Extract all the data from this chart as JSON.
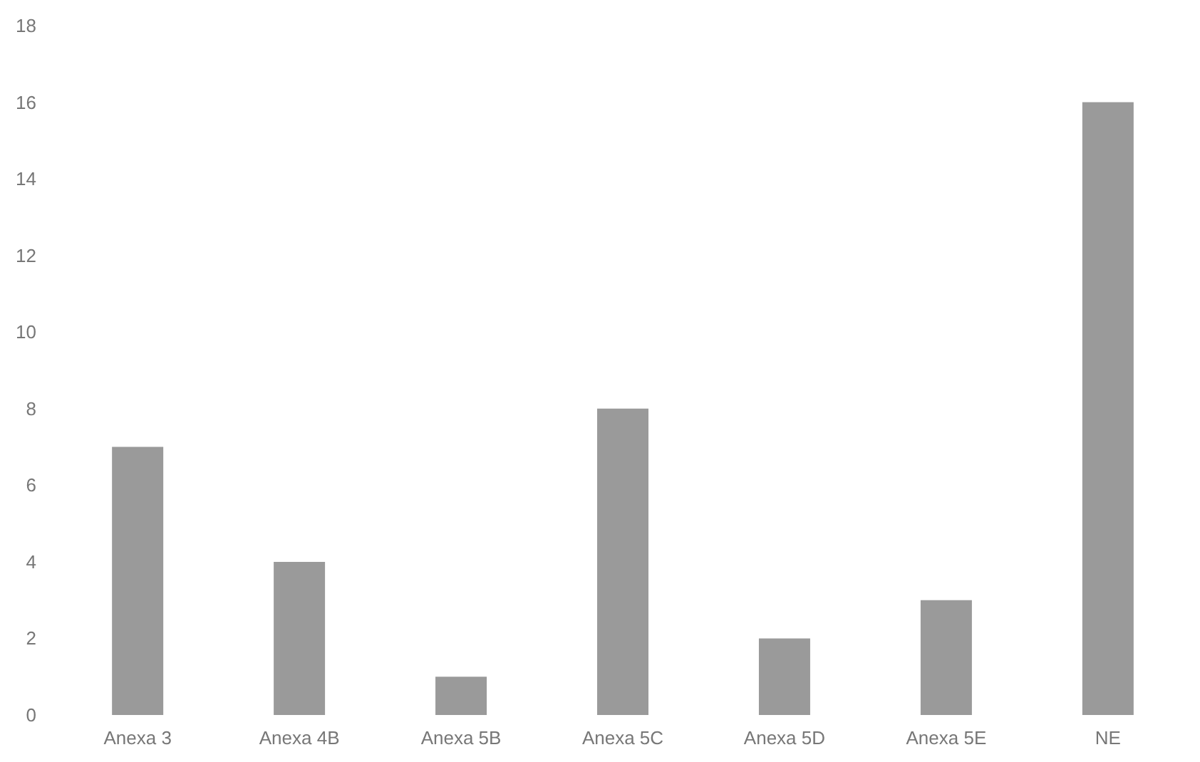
{
  "chart_data": {
    "type": "bar",
    "categories": [
      "Anexa 3",
      "Anexa 4B",
      "Anexa 5B",
      "Anexa 5C",
      "Anexa 5D",
      "Anexa 5E",
      "NE"
    ],
    "values": [
      7,
      4,
      1,
      8,
      2,
      3,
      16
    ],
    "color": "#9a9a9a",
    "ylim": [
      0,
      18
    ],
    "yticks": [
      0,
      2,
      4,
      6,
      8,
      10,
      12,
      14,
      16,
      18
    ],
    "grid": false
  }
}
